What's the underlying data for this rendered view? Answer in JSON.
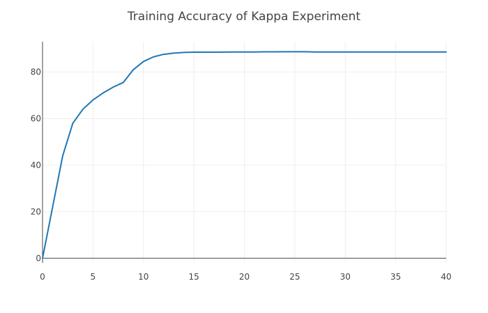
{
  "chart_data": {
    "type": "line",
    "title": "Training Accuracy of Kappa Experiment",
    "xlabel": "",
    "ylabel": "",
    "xlim": [
      0,
      40
    ],
    "ylim": [
      -2,
      93
    ],
    "xticks": [
      0,
      5,
      10,
      15,
      20,
      25,
      30,
      35,
      40
    ],
    "yticks": [
      0,
      20,
      40,
      60,
      80
    ],
    "grid": true,
    "legend": "none",
    "series": [
      {
        "color": "#1f77b4",
        "x": [
          0,
          1,
          2,
          3,
          4,
          5,
          6,
          7,
          8,
          9,
          10,
          11,
          12,
          13,
          14,
          15,
          16,
          17,
          18,
          19,
          20,
          21,
          22,
          23,
          24,
          25,
          26,
          27,
          28,
          29,
          30,
          31,
          32,
          33,
          34,
          35,
          36,
          37,
          38,
          39,
          40
        ],
        "y": [
          0,
          22,
          44,
          58,
          64,
          68,
          71,
          73.5,
          75.5,
          81,
          84.5,
          86.5,
          87.6,
          88.1,
          88.4,
          88.5,
          88.5,
          88.5,
          88.55,
          88.6,
          88.6,
          88.6,
          88.65,
          88.65,
          88.7,
          88.7,
          88.7,
          88.6,
          88.6,
          88.6,
          88.6,
          88.6,
          88.6,
          88.6,
          88.6,
          88.6,
          88.6,
          88.6,
          88.6,
          88.6,
          88.6
        ]
      }
    ]
  }
}
